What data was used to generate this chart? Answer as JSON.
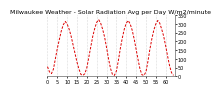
{
  "title": "Milwaukee Weather - Solar Radiation Avg per Day W/m2/minute",
  "bg_color": "#ffffff",
  "line_color": "#dd0000",
  "grid_color": "#bbbbbb",
  "ylim": [
    0,
    350
  ],
  "yticks": [
    0,
    50,
    100,
    150,
    200,
    250,
    300,
    350
  ],
  "values": [
    55,
    25,
    15,
    40,
    100,
    160,
    210,
    260,
    295,
    315,
    300,
    270,
    230,
    180,
    130,
    80,
    40,
    10,
    5,
    15,
    50,
    110,
    170,
    230,
    275,
    310,
    325,
    305,
    270,
    225,
    165,
    100,
    45,
    10,
    5,
    30,
    90,
    160,
    220,
    270,
    305,
    320,
    300,
    265,
    215,
    155,
    95,
    40,
    8,
    5,
    25,
    85,
    155,
    215,
    265,
    300,
    320,
    305,
    270,
    230,
    175,
    115,
    60,
    20,
    5
  ],
  "xtick_interval": 5,
  "title_fontsize": 4.5,
  "tick_fontsize": 3.5,
  "linewidth": 0.7,
  "dash_on": 2.5,
  "dash_off": 1.5
}
